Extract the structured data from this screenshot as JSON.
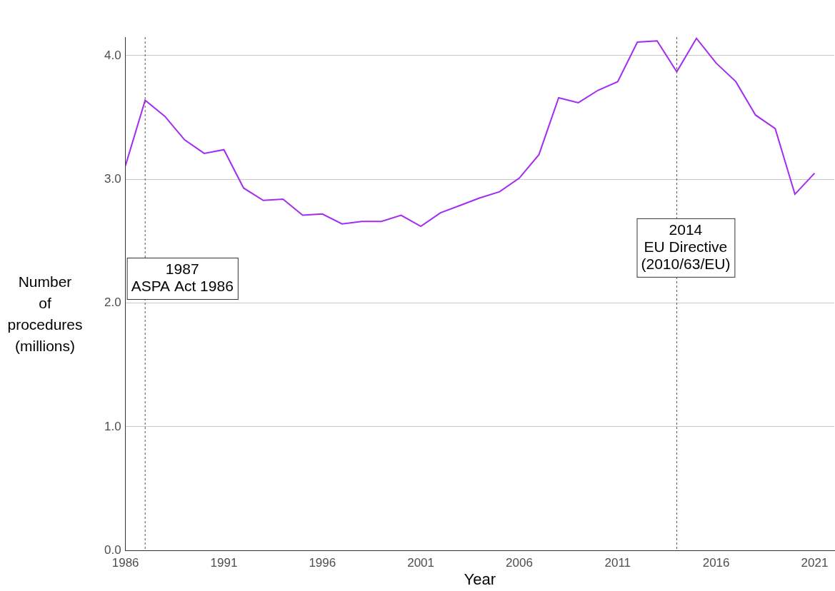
{
  "chart_data": {
    "type": "line",
    "x_label": "Year",
    "y_label": [
      "Number",
      "of",
      "procedures",
      "(millions)"
    ],
    "x": [
      1986,
      1987,
      1988,
      1989,
      1990,
      1991,
      1992,
      1993,
      1994,
      1995,
      1996,
      1997,
      1998,
      1999,
      2000,
      2001,
      2002,
      2003,
      2004,
      2005,
      2006,
      2007,
      2008,
      2009,
      2010,
      2011,
      2012,
      2013,
      2014,
      2015,
      2016,
      2017,
      2018,
      2019,
      2020,
      2021
    ],
    "values": [
      3.11,
      3.64,
      3.51,
      3.32,
      3.21,
      3.24,
      2.93,
      2.83,
      2.84,
      2.71,
      2.72,
      2.64,
      2.66,
      2.66,
      2.71,
      2.62,
      2.73,
      2.79,
      2.85,
      2.9,
      3.01,
      3.2,
      3.66,
      3.62,
      3.72,
      3.79,
      4.11,
      4.12,
      3.87,
      4.14,
      3.94,
      3.79,
      3.52,
      3.41,
      2.88,
      3.05
    ],
    "color": "#a32cf0",
    "marker": "none",
    "xlim": [
      1986,
      2022
    ],
    "xticks": [
      1986,
      1991,
      1996,
      2001,
      2006,
      2011,
      2016,
      2021
    ],
    "ylim": [
      0,
      4.15
    ],
    "yticks": [
      {
        "value": 0,
        "label": "0.0"
      },
      {
        "value": 1,
        "label": "1.0"
      },
      {
        "value": 2,
        "label": "2.0"
      },
      {
        "value": 3,
        "label": "3.0"
      },
      {
        "value": 4,
        "label": "4.0"
      }
    ],
    "grid": true,
    "annotations": [
      {
        "x": 1987,
        "text": [
          "1987",
          "ASPA Act 1986"
        ]
      },
      {
        "x": 2014,
        "text": [
          "2014",
          "EU Directive",
          "(2010/63/EU)"
        ]
      }
    ]
  }
}
